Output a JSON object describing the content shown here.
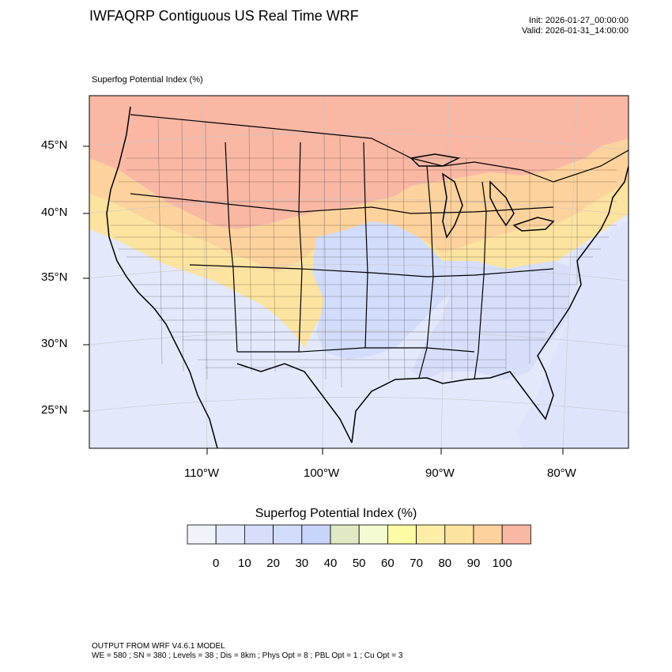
{
  "title": "IWFAQRP Contiguous US Real Time WRF",
  "init": "Init: 2026-01-27_00:00:00",
  "valid": "Valid: 2026-01-31_14:00:00",
  "subtitle": "Superfog Potential Index   (%)",
  "map": {
    "lat_labels": [
      "45°N",
      "40°N",
      "35°N",
      "30°N",
      "25°N"
    ],
    "lon_labels": [
      "110°W",
      "100°W",
      "90°W",
      "80°W"
    ]
  },
  "legend": {
    "title": "Superfog Potential Index  (%)",
    "colors": [
      "#f0f3fa",
      "#e3e8fb",
      "#d6defa",
      "#d2dcfb",
      "#c9d4fb",
      "#dfe9c4",
      "#f4fbd2",
      "#fdfba4",
      "#fdeda6",
      "#fde3a0",
      "#fdd29c",
      "#f9b7a4"
    ],
    "labels": [
      "0",
      "10",
      "20",
      "30",
      "40",
      "50",
      "60",
      "70",
      "80",
      "90",
      "100"
    ]
  },
  "footer": {
    "line1": "OUTPUT FROM WRF V4.6.1 MODEL",
    "line2": "WE = 580 ; SN = 380 ; Levels = 38 ; Dis = 8km ; Phys Opt = 8 ; PBL Opt = 1 ; Cu Opt = 3"
  }
}
